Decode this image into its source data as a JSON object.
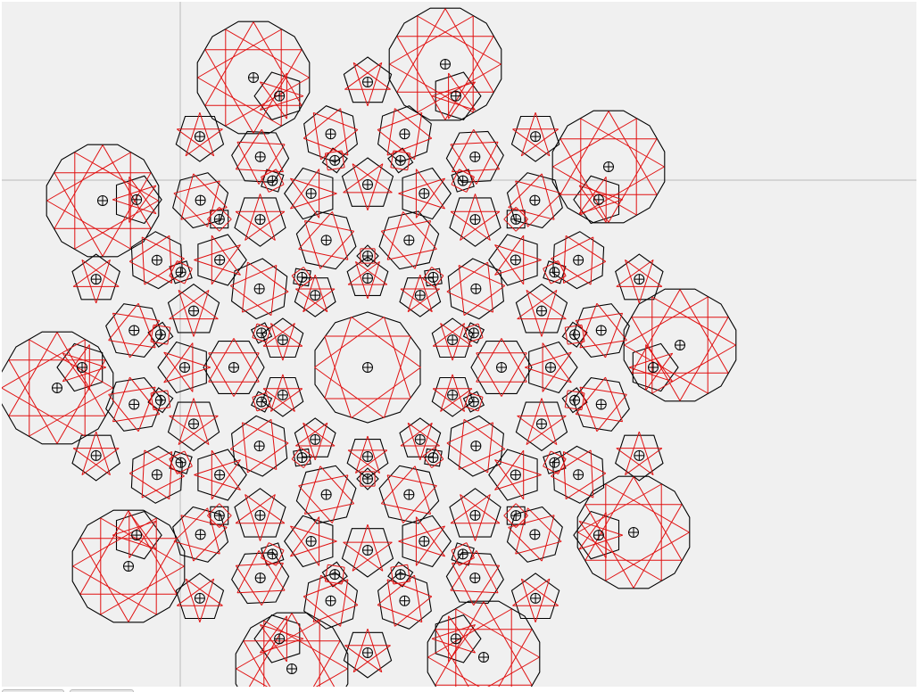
{
  "canvas": {
    "background": "#f0f0f0",
    "guide_color": "#cccccc",
    "tile_edge_color": "#000000",
    "pattern_color": "#e01010",
    "handle_glyph": "⊕"
  },
  "toolbar": {
    "tab_1_label": "",
    "tab_2_label": ""
  }
}
